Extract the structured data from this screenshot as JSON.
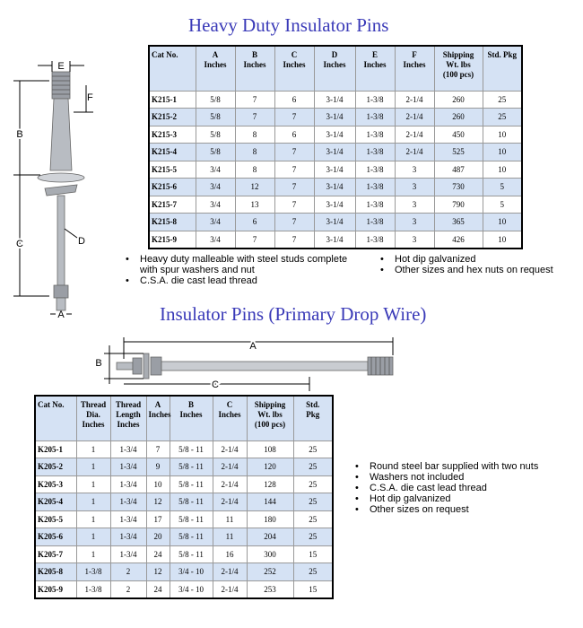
{
  "section1": {
    "title": "Heavy Duty Insulator Pins",
    "diagram_labels": {
      "a": "A",
      "b": "B",
      "c": "C",
      "d": "D",
      "e": "E",
      "f": "F"
    },
    "table": {
      "header": [
        [
          "Cat No."
        ],
        [
          "A",
          "Inches"
        ],
        [
          "B",
          "Inches"
        ],
        [
          "C",
          "Inches"
        ],
        [
          "D",
          "Inches"
        ],
        [
          "E",
          "Inches"
        ],
        [
          "F",
          "Inches"
        ],
        [
          "Shipping",
          "Wt. lbs",
          "(100 pcs)"
        ],
        [
          "Std. Pkg"
        ]
      ],
      "rows": [
        [
          "K215-1",
          "5/8",
          "7",
          "6",
          "3-1/4",
          "1-3/8",
          "2-1/4",
          "260",
          "25"
        ],
        [
          "K215-2",
          "5/8",
          "7",
          "7",
          "3-1/4",
          "1-3/8",
          "2-1/4",
          "260",
          "25"
        ],
        [
          "K215-3",
          "5/8",
          "8",
          "6",
          "3-1/4",
          "1-3/8",
          "2-1/4",
          "450",
          "10"
        ],
        [
          "K215-4",
          "5/8",
          "8",
          "7",
          "3-1/4",
          "1-3/8",
          "2-1/4",
          "525",
          "10"
        ],
        [
          "K215-5",
          "3/4",
          "8",
          "7",
          "3-1/4",
          "1-3/8",
          "3",
          "487",
          "10"
        ],
        [
          "K215-6",
          "3/4",
          "12",
          "7",
          "3-1/4",
          "1-3/8",
          "3",
          "730",
          "5"
        ],
        [
          "K215-7",
          "3/4",
          "13",
          "7",
          "3-1/4",
          "1-3/8",
          "3",
          "790",
          "5"
        ],
        [
          "K215-8",
          "3/4",
          "6",
          "7",
          "3-1/4",
          "1-3/8",
          "3",
          "365",
          "10"
        ],
        [
          "K215-9",
          "3/4",
          "7",
          "7",
          "3-1/4",
          "1-3/8",
          "3",
          "426",
          "10"
        ]
      ]
    },
    "bullets_left": [
      "Heavy duty malleable with steel studs complete with spur washers and nut",
      "C.S.A. die cast lead thread"
    ],
    "bullets_right": [
      "Hot dip galvanized",
      "Other sizes and hex nuts on request"
    ]
  },
  "section2": {
    "title": "Insulator Pins (Primary Drop Wire)",
    "diagram_labels": {
      "a": "A",
      "b": "B",
      "c": "C"
    },
    "table": {
      "header": [
        [
          "Cat No."
        ],
        [
          "Thread",
          "Dia.",
          "Inches"
        ],
        [
          "Thread",
          "Length",
          "Inches"
        ],
        [
          "A",
          "Inches"
        ],
        [
          "B",
          "Inches"
        ],
        [
          "C",
          "Inches"
        ],
        [
          "Shipping",
          "Wt. lbs",
          "(100 pcs)"
        ],
        [
          "Std.",
          "Pkg"
        ]
      ],
      "rows": [
        [
          "K205-1",
          "1",
          "1-3/4",
          "7",
          "5/8 - 11",
          "2-1/4",
          "108",
          "25"
        ],
        [
          "K205-2",
          "1",
          "1-3/4",
          "9",
          "5/8 - 11",
          "2-1/4",
          "120",
          "25"
        ],
        [
          "K205-3",
          "1",
          "1-3/4",
          "10",
          "5/8 - 11",
          "2-1/4",
          "128",
          "25"
        ],
        [
          "K205-4",
          "1",
          "1-3/4",
          "12",
          "5/8 - 11",
          "2-1/4",
          "144",
          "25"
        ],
        [
          "K205-5",
          "1",
          "1-3/4",
          "17",
          "5/8 - 11",
          "11",
          "180",
          "25"
        ],
        [
          "K205-6",
          "1",
          "1-3/4",
          "20",
          "5/8 - 11",
          "11",
          "204",
          "25"
        ],
        [
          "K205-7",
          "1",
          "1-3/4",
          "24",
          "5/8 - 11",
          "16",
          "300",
          "15"
        ],
        [
          "K205-8",
          "1-3/8",
          "2",
          "12",
          "3/4 - 10",
          "2-1/4",
          "252",
          "25"
        ],
        [
          "K205-9",
          "1-3/8",
          "2",
          "24",
          "3/4 - 10",
          "2-1/4",
          "253",
          "15"
        ]
      ]
    },
    "bullets": [
      "Round steel bar supplied with two nuts",
      "Washers not included",
      "C.S.A. die cast lead thread",
      "Hot dip galvanized",
      "Other sizes on request"
    ]
  }
}
